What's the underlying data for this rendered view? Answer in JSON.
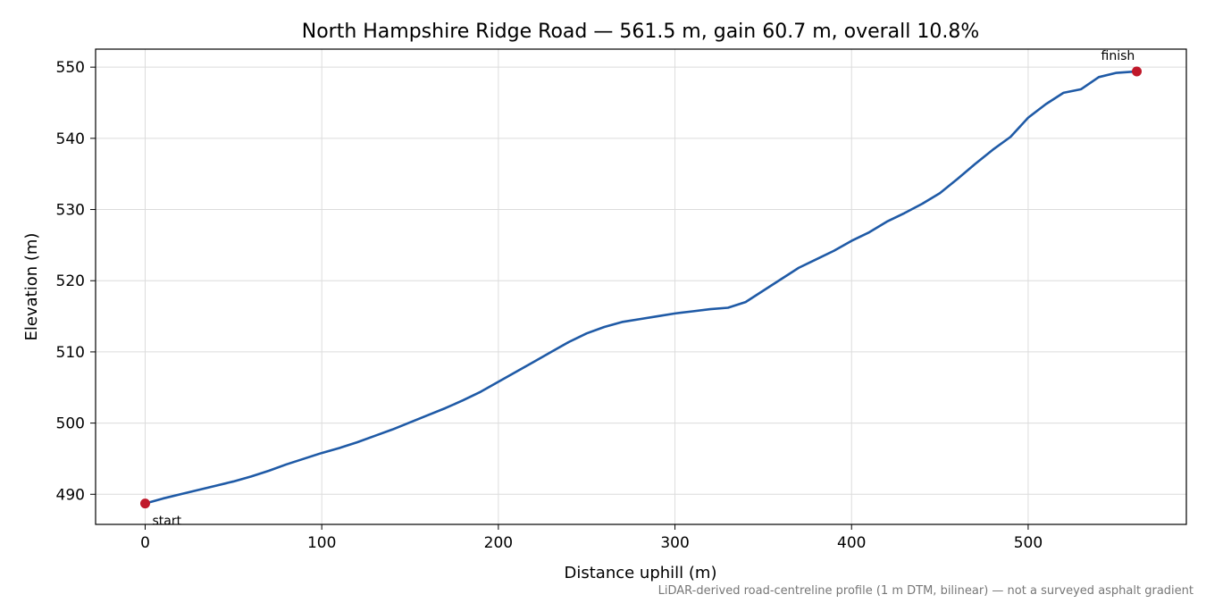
{
  "chart_data": {
    "type": "line",
    "title": "North Hampshire Ridge Road — 561.5 m, gain 60.7 m, overall 10.8%",
    "x_label": "Distance uphill (m)",
    "y_label": "Elevation (m)",
    "note": "LiDAR-derived road-centreline profile (1 m DTM, bilinear) — not a surveyed asphalt gradient",
    "color": "#1f5aa6",
    "x": [
      0,
      10,
      20,
      30,
      40,
      50,
      60,
      70,
      80,
      90,
      100,
      110,
      120,
      130,
      140,
      150,
      160,
      170,
      180,
      190,
      200,
      210,
      220,
      230,
      240,
      250,
      260,
      270,
      280,
      290,
      300,
      310,
      320,
      330,
      340,
      350,
      360,
      370,
      380,
      390,
      400,
      410,
      420,
      430,
      440,
      450,
      460,
      470,
      480,
      490,
      500,
      510,
      520,
      530,
      540,
      550,
      561.5
    ],
    "values": [
      488.7,
      489.4,
      490.0,
      490.6,
      491.2,
      491.8,
      492.5,
      493.3,
      494.2,
      495.0,
      495.8,
      496.5,
      497.3,
      498.2,
      499.1,
      500.1,
      501.1,
      502.1,
      503.2,
      504.4,
      505.8,
      507.2,
      508.6,
      510.0,
      511.4,
      512.6,
      513.5,
      514.2,
      514.6,
      515.0,
      515.4,
      515.7,
      516.0,
      516.2,
      517.0,
      518.6,
      520.2,
      521.8,
      523.0,
      524.2,
      525.6,
      526.8,
      528.3,
      529.5,
      530.8,
      532.3,
      534.3,
      536.4,
      538.4,
      540.2,
      542.9,
      544.8,
      546.4,
      546.9,
      548.6,
      549.2,
      549.4
    ],
    "markers": [
      {
        "label": "start",
        "x": 0,
        "y": 488.7
      },
      {
        "label": "finish",
        "x": 561.5,
        "y": 549.4
      }
    ],
    "marker_color": "#c0182a",
    "xlim": [
      -28.075,
      589.575
    ],
    "ylim": [
      485.77,
      552.53
    ],
    "xticks": [
      0,
      100,
      200,
      300,
      400,
      500
    ],
    "yticks": [
      490,
      500,
      510,
      520,
      530,
      540,
      550
    ],
    "grid": true
  }
}
